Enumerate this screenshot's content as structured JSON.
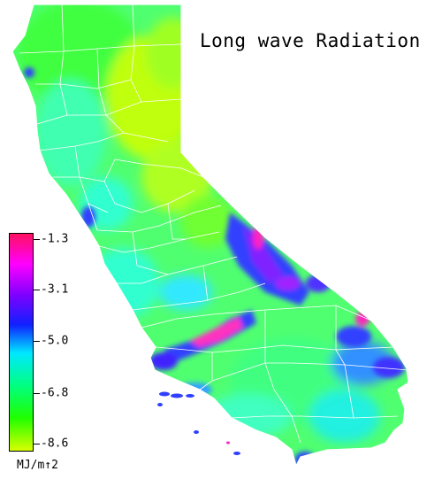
{
  "title": "Long wave Radiation",
  "legend": {
    "unit": "MJ/m↑2",
    "ticks": [
      "-1.3",
      "-3.1",
      "-5.0",
      "-6.8",
      "-8.6"
    ],
    "colors": [
      "#ff1060",
      "#ff00ff",
      "#8000ff",
      "#1020ff",
      "#00e8ff",
      "#00ff80",
      "#20ff00",
      "#d8ff00"
    ]
  },
  "palette": {
    "land_base": "#50ff70",
    "north_green": "#40ff40",
    "north_yellow": "#c0ff10",
    "coast_cyan": "#30ffd0",
    "desert_cyan": "#20f0e0",
    "mountain_blue": "#3040ff",
    "mountain_violet": "#8020ff",
    "peak_magenta": "#ff20c0",
    "boundary": "#ffffff"
  }
}
